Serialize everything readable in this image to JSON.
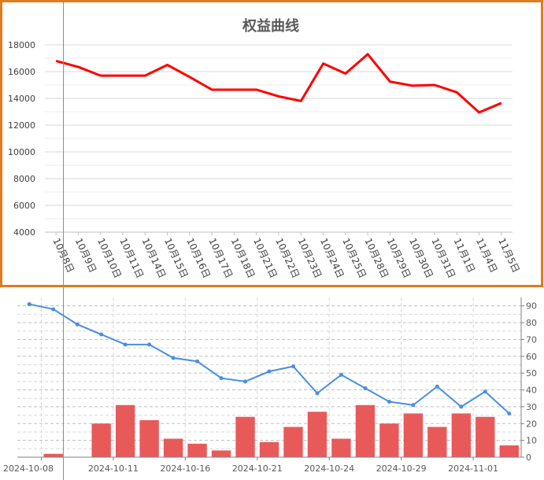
{
  "chart_data": [
    {
      "type": "line",
      "title": "权益曲线",
      "categories": [
        "10月8日",
        "10月9日",
        "10月10日",
        "10月11日",
        "10月14日",
        "10月15日",
        "10月16日",
        "10月17日",
        "10月18日",
        "10月21日",
        "10月22日",
        "10月23日",
        "10月24日",
        "10月25日",
        "10月28日",
        "10月29日",
        "10月30日",
        "10月31日",
        "11月1日",
        "11月4日",
        "11月5日"
      ],
      "series": [
        {
          "values": [
            16800,
            16350,
            15700,
            15700,
            15700,
            16500,
            15600,
            14650,
            14650,
            14650,
            14150,
            13800,
            16600,
            15850,
            17300,
            15250,
            14950,
            15000,
            14450,
            12950,
            13650
          ]
        }
      ],
      "ylim": [
        4000,
        18000
      ],
      "yticks": [
        4000,
        6000,
        8000,
        10000,
        12000,
        14000,
        16000,
        18000
      ],
      "grid": true,
      "colors": {
        "line": "#ff0000",
        "border": "#e07b1e"
      }
    },
    {
      "type": "bar",
      "x_ticks": [
        "2024-10-08",
        "2024-10-11",
        "2024-10-16",
        "2024-10-21",
        "2024-10-24",
        "2024-10-29",
        "2024-11-01"
      ],
      "right_yticks": [
        "0",
        "10",
        "20",
        "30",
        "40",
        "50",
        "60",
        "70",
        "80",
        "90"
      ],
      "series": [
        {
          "type": "bar",
          "values": [
            0,
            2,
            0,
            20,
            31,
            22,
            11,
            8,
            4,
            24,
            9,
            18,
            27,
            11,
            31,
            20,
            26,
            18,
            26,
            24,
            7
          ],
          "color": "#e85a5a"
        },
        {
          "type": "line",
          "values": [
            91,
            88,
            79,
            73,
            67,
            67,
            59,
            57,
            47,
            45,
            51,
            54,
            38,
            49,
            41,
            33,
            31,
            42,
            30,
            39,
            26
          ],
          "color": "#4a8ee0"
        }
      ],
      "ylim_right": [
        0,
        95
      ],
      "grid": true
    }
  ]
}
